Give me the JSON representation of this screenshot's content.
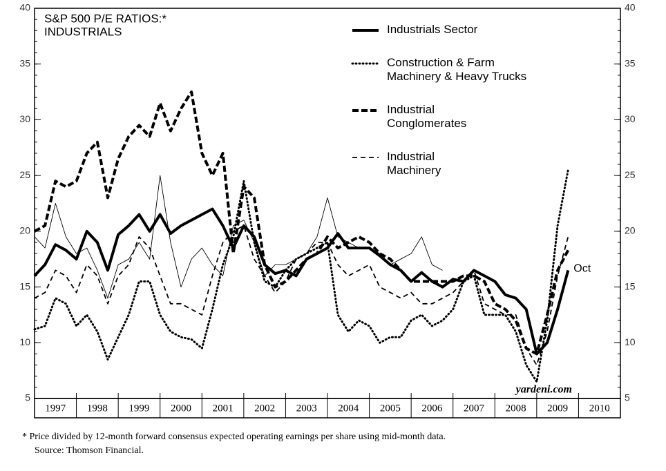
{
  "chart_data": {
    "type": "line",
    "title_lines": [
      "S&P 500 P/E RATIOS:*",
      "INDUSTRIALS"
    ],
    "x": [
      1997,
      1997.25,
      1997.5,
      1997.75,
      1998,
      1998.25,
      1998.5,
      1998.75,
      1999,
      1999.25,
      1999.5,
      1999.75,
      2000,
      2000.25,
      2000.5,
      2000.75,
      2001,
      2001.25,
      2001.5,
      2001.75,
      2002,
      2002.25,
      2002.5,
      2002.75,
      2003,
      2003.25,
      2003.5,
      2003.75,
      2004,
      2004.25,
      2004.5,
      2004.75,
      2005,
      2005.25,
      2005.5,
      2005.75,
      2006,
      2006.25,
      2006.5,
      2006.75,
      2007,
      2007.25,
      2007.5,
      2007.75,
      2008,
      2008.25,
      2008.5,
      2008.75,
      2009,
      2009.25,
      2009.5,
      2009.75
    ],
    "xlim": [
      1997,
      2011
    ],
    "xticks": [
      {
        "value": 1997.5,
        "label": "1997"
      },
      {
        "value": 1998.5,
        "label": "1998"
      },
      {
        "value": 1999.5,
        "label": "1999"
      },
      {
        "value": 2000.5,
        "label": "2000"
      },
      {
        "value": 2001.5,
        "label": "2001"
      },
      {
        "value": 2002.5,
        "label": "2002"
      },
      {
        "value": 2003.5,
        "label": "2003"
      },
      {
        "value": 2004.5,
        "label": "2004"
      },
      {
        "value": 2005.5,
        "label": "2005"
      },
      {
        "value": 2006.5,
        "label": "2006"
      },
      {
        "value": 2007.5,
        "label": "2007"
      },
      {
        "value": 2008.5,
        "label": "2008"
      },
      {
        "value": 2009.5,
        "label": "2009"
      },
      {
        "value": 2010.5,
        "label": "2010"
      }
    ],
    "ylim": [
      5,
      40
    ],
    "yticks": [
      5,
      10,
      15,
      20,
      25,
      30,
      35,
      40
    ],
    "y2lim": [
      5,
      40
    ],
    "y2ticks": [
      5,
      10,
      15,
      20,
      25,
      30,
      35,
      40
    ],
    "legend_position": "top-right",
    "series": [
      {
        "name": "Industrials Sector",
        "color": "#000000",
        "line_style": "solid",
        "line_width": 4,
        "values": [
          16,
          17,
          18.8,
          18.3,
          17.5,
          20,
          19,
          16.5,
          19.7,
          20.5,
          21.5,
          20,
          21.5,
          19.8,
          20.5,
          21,
          21.5,
          22,
          20.5,
          18.5,
          20.5,
          19.5,
          17,
          16.2,
          16.5,
          16,
          17.5,
          18,
          18.5,
          19.8,
          18.5,
          18.5,
          18.5,
          17.8,
          17,
          16.5,
          15.5,
          16.3,
          15.5,
          15,
          15.7,
          15.5,
          16.5,
          16,
          15.5,
          14.3,
          14,
          13,
          9,
          10,
          13,
          16.5
        ]
      },
      {
        "name": "Construction & Farm\nMachinery & Heavy Trucks",
        "color": "#000000",
        "line_style": "dotted",
        "line_width": 3,
        "values": [
          11.2,
          11.5,
          14,
          13.5,
          11.5,
          12.5,
          11,
          8.5,
          10.5,
          12.5,
          15.5,
          15.5,
          12.5,
          11,
          10.5,
          10.3,
          9.5,
          13,
          17,
          19.5,
          24.5,
          19,
          15.5,
          15,
          16.5,
          17.5,
          18,
          18.5,
          19,
          12.5,
          11,
          12,
          11.5,
          10,
          10.5,
          10.5,
          12,
          12.5,
          11.5,
          12,
          13,
          15.5,
          16,
          12.5,
          12.5,
          12.5,
          11,
          8,
          6.5,
          12,
          20.5,
          25.5
        ]
      },
      {
        "name": "Industrial\nConglomerates",
        "color": "#000000",
        "line_style": "dashed",
        "line_width": 4,
        "values": [
          20,
          20.5,
          24.5,
          24,
          24.5,
          27,
          28,
          23,
          26.5,
          28.5,
          29.5,
          28.5,
          31.5,
          29,
          31,
          32.5,
          27,
          25,
          27,
          18,
          24,
          23,
          17,
          15,
          15.5,
          16.5,
          17.5,
          18,
          19.5,
          18.5,
          19,
          19.5,
          19,
          18,
          17.5,
          16.5,
          15.5,
          15.5,
          15.5,
          15.5,
          15.5,
          16,
          16,
          15.5,
          13.5,
          13,
          12,
          9.5,
          9,
          12.5,
          16.5,
          18.3
        ]
      },
      {
        "name": "Industrial\nMachinery",
        "color": "#000000",
        "line_style": "thin-dashed",
        "line_width": 1.8,
        "values": [
          14,
          14.5,
          16.5,
          16,
          14.5,
          17,
          16,
          13.5,
          16,
          17,
          19.5,
          18.5,
          16,
          13.5,
          13.5,
          13,
          12.5,
          16,
          19,
          20,
          20.5,
          17.5,
          16,
          14.5,
          15.5,
          17.5,
          18,
          19,
          19,
          17,
          16,
          16.5,
          17,
          15,
          14.5,
          14,
          14.5,
          13.5,
          13.5,
          14,
          14.5,
          15.5,
          16.5,
          13.5,
          13,
          12.5,
          12.5,
          9.5,
          8,
          11,
          16,
          19.5
        ]
      },
      {
        "color": "#000000",
        "line_style": "solid",
        "line_width": 0.9,
        "values": [
          19.5,
          18.5,
          22.5,
          19.5,
          18,
          18.5,
          16.5,
          14,
          17,
          17.5,
          19,
          17.5,
          25,
          19,
          15,
          17.5,
          18.5,
          17,
          16,
          20.5,
          21,
          19,
          16,
          17,
          17,
          17.5,
          18,
          19.5,
          23,
          19.5,
          19,
          18.5,
          18.5,
          18,
          17,
          17.5,
          18,
          19.5,
          17,
          16.5,
          null,
          null,
          null,
          null,
          null,
          null,
          null,
          null,
          null,
          null,
          null,
          null
        ]
      }
    ],
    "end_label": "Oct",
    "source_mark": "yardeni.com",
    "footnote": "*  Price divided by 12-month forward consensus expected operating earnings per share using mid-month data.",
    "source": "Source: Thomson Financial."
  }
}
